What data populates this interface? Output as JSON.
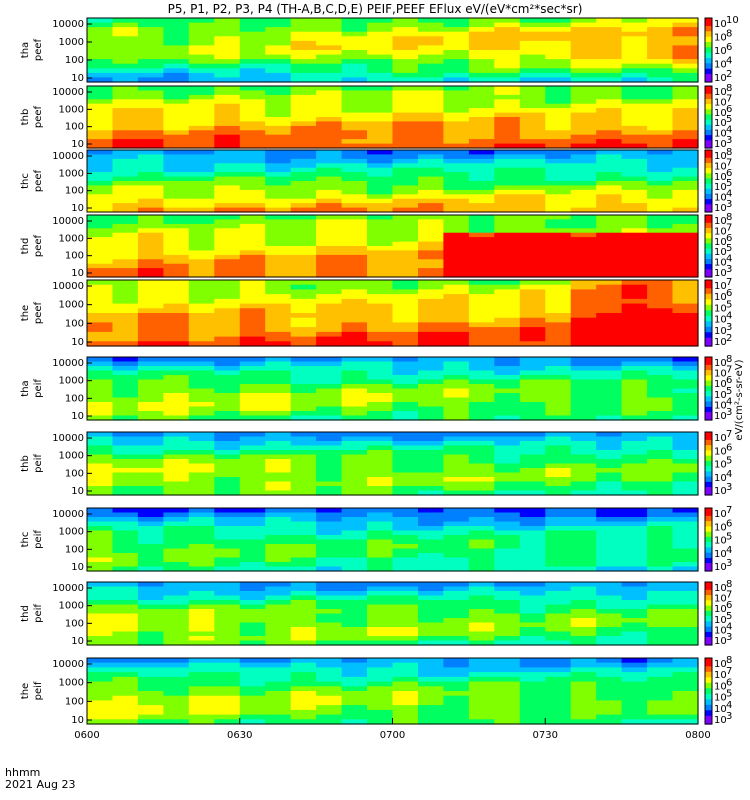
{
  "title": "P5, P1, P2, P3, P4 (TH-A,B,C,D,E) PEIF,PEEF EFlux eV/(eV*cm²*sec*sr)",
  "bottom_left": {
    "time_label": "hhmm",
    "date_label": "2021 Aug 23"
  },
  "chart_data": {
    "type": "heatmap",
    "x_ticks": [
      "0600",
      "0630",
      "0700",
      "0730",
      "0800"
    ],
    "y_ticks": [
      "10",
      "100",
      "1000",
      "10000"
    ],
    "colorbar_unit_label": "eV/(cm²-s-sr-eV)",
    "panels": [
      {
        "label_line1": "tha",
        "label_line2": "peef",
        "kind": "electron",
        "probe": "a"
      },
      {
        "label_line1": "thb",
        "label_line2": "peef",
        "kind": "electron",
        "probe": "b"
      },
      {
        "label_line1": "thc",
        "label_line2": "peef",
        "kind": "electron",
        "probe": "c"
      },
      {
        "label_line1": "thd",
        "label_line2": "peef",
        "kind": "electron",
        "probe": "d"
      },
      {
        "label_line1": "the",
        "label_line2": "peef",
        "kind": "electron",
        "probe": "e"
      },
      {
        "label_line1": "tha",
        "label_line2": "peif",
        "kind": "ion",
        "probe": "a"
      },
      {
        "label_line1": "thb",
        "label_line2": "peif",
        "kind": "ion",
        "probe": "b"
      },
      {
        "label_line1": "thc",
        "label_line2": "peif",
        "kind": "ion",
        "probe": "c"
      },
      {
        "label_line1": "thd",
        "label_line2": "peif",
        "kind": "ion",
        "probe": "d"
      },
      {
        "label_line1": "the",
        "label_line2": "peif",
        "kind": "ion",
        "probe": "e"
      }
    ],
    "colorbars": [
      [
        "10",
        "8",
        "6",
        "4",
        "2"
      ],
      [
        "8",
        "7",
        "6",
        "5",
        "4",
        "3"
      ],
      [
        "8",
        "7",
        "6",
        "5",
        "4",
        "3"
      ],
      [
        "8",
        "7",
        "6",
        "5",
        "4",
        "3"
      ],
      [
        "7",
        "6",
        "5",
        "4",
        "3",
        "2"
      ],
      [
        "8",
        "7",
        "6",
        "5",
        "4",
        "3"
      ],
      [
        "7",
        "6",
        "5",
        "4",
        "3"
      ],
      [
        "7",
        "6",
        "5",
        "4",
        "3"
      ],
      [
        "8",
        "7",
        "6",
        "5",
        "4",
        "3"
      ],
      [
        "8",
        "7",
        "6",
        "5",
        "4",
        "3"
      ]
    ],
    "colorscale": [
      "#ffffff",
      "#8000ff",
      "#0000ff",
      "#0080ff",
      "#00c0ff",
      "#00ffc0",
      "#00ff60",
      "#80ff00",
      "#ffff00",
      "#ffc000",
      "#ff6000",
      "#ff0000"
    ]
  }
}
